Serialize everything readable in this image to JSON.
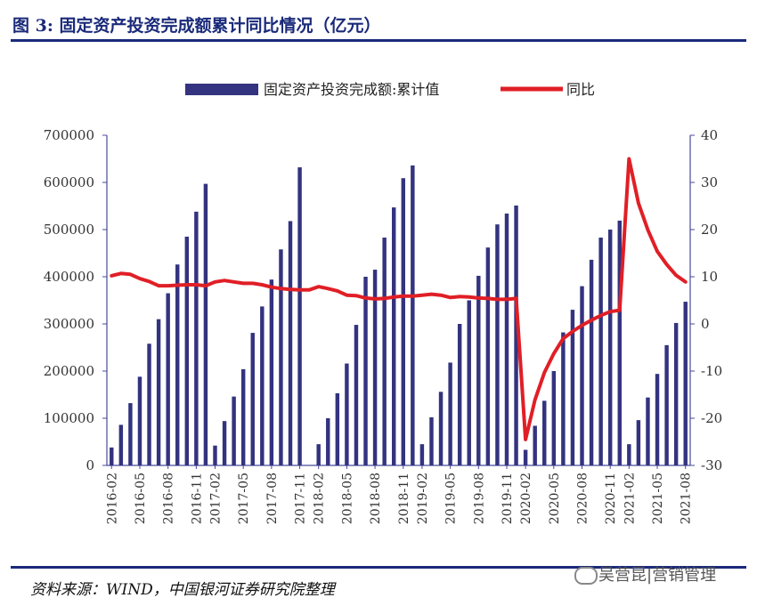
{
  "header": {
    "title": "图 3:  固定资产投资完成额累计同比情况（亿元）"
  },
  "footer": {
    "source": "资料来源：WIND，中国银河证券研究院整理",
    "watermark": "吴营昆|营销管理"
  },
  "colors": {
    "bar": "#33337f",
    "line": "#e01f26",
    "title": "#1a2a7a",
    "axis": "#4a4a9a"
  },
  "chart_data": {
    "type": "bar+line",
    "title": "",
    "legend": {
      "bar_label": "固定资产投资完成额:累计值",
      "line_label": "同比",
      "position": "top-center"
    },
    "categories": [
      "2016-02",
      "2016-03",
      "2016-04",
      "2016-05",
      "2016-06",
      "2016-07",
      "2016-08",
      "2016-09",
      "2016-10",
      "2016-11",
      "2016-12",
      "2017-02",
      "2017-03",
      "2017-04",
      "2017-05",
      "2017-06",
      "2017-07",
      "2017-08",
      "2017-09",
      "2017-10",
      "2017-11",
      "2017-12",
      "2018-02",
      "2018-03",
      "2018-04",
      "2018-05",
      "2018-06",
      "2018-07",
      "2018-08",
      "2018-09",
      "2018-10",
      "2018-11",
      "2018-12",
      "2019-02",
      "2019-03",
      "2019-04",
      "2019-05",
      "2019-06",
      "2019-07",
      "2019-08",
      "2019-09",
      "2019-10",
      "2019-11",
      "2019-12",
      "2020-02",
      "2020-03",
      "2020-04",
      "2020-05",
      "2020-06",
      "2020-07",
      "2020-08",
      "2020-09",
      "2020-10",
      "2020-11",
      "2020-12",
      "2021-02",
      "2021-03",
      "2021-04",
      "2021-05",
      "2021-06",
      "2021-07",
      "2021-08"
    ],
    "x_tick_labels": [
      "2016-02",
      "2016-05",
      "2016-08",
      "2016-11",
      "2017-02",
      "2017-05",
      "2017-08",
      "2017-11",
      "2018-02",
      "2018-05",
      "2018-08",
      "2018-11",
      "2019-02",
      "2019-05",
      "2019-08",
      "2019-11",
      "2020-02",
      "2020-05",
      "2020-08",
      "2020-11",
      "2021-02",
      "2021-05",
      "2021-08"
    ],
    "series": [
      {
        "name": "固定资产投资完成额:累计值",
        "axis": "left",
        "kind": "bar",
        "values": [
          38000,
          86000,
          132000,
          188000,
          258000,
          310000,
          365000,
          426000,
          485000,
          538000,
          597000,
          42000,
          94000,
          146000,
          204000,
          281000,
          337000,
          394000,
          458000,
          518000,
          632000,
          0,
          45000,
          100000,
          153000,
          216000,
          298000,
          400000,
          415000,
          483000,
          547000,
          609000,
          636000,
          45000,
          102000,
          156000,
          218000,
          300000,
          350000,
          402000,
          462000,
          511000,
          534000,
          551000,
          33000,
          84000,
          137000,
          200000,
          282000,
          330000,
          380000,
          436000,
          483000,
          500000,
          519000,
          45000,
          96000,
          144000,
          194000,
          255000,
          302000,
          347000
        ]
      },
      {
        "name": "同比",
        "axis": "right",
        "kind": "line",
        "values": [
          10.2,
          10.7,
          10.5,
          9.6,
          9.0,
          8.1,
          8.1,
          8.2,
          8.3,
          8.3,
          8.1,
          8.9,
          9.2,
          8.9,
          8.6,
          8.6,
          8.3,
          7.8,
          7.5,
          7.3,
          7.2,
          7.2,
          7.9,
          7.5,
          7.0,
          6.1,
          6.0,
          5.5,
          5.3,
          5.4,
          5.7,
          5.9,
          5.9,
          6.1,
          6.3,
          6.1,
          5.6,
          5.8,
          5.7,
          5.5,
          5.4,
          5.2,
          5.2,
          5.4,
          -24.5,
          -16.1,
          -10.3,
          -6.3,
          -3.1,
          -1.6,
          -0.3,
          0.8,
          1.8,
          2.6,
          2.9,
          35.0,
          25.6,
          19.9,
          15.4,
          12.6,
          10.3,
          8.9
        ]
      }
    ],
    "y_left": {
      "min": 0,
      "max": 700000,
      "ticks": [
        0,
        100000,
        200000,
        300000,
        400000,
        500000,
        600000,
        700000
      ]
    },
    "y_right": {
      "min": -30,
      "max": 40,
      "ticks": [
        -30,
        -20,
        -10,
        0,
        10,
        20,
        30,
        40
      ]
    },
    "grid": false
  }
}
